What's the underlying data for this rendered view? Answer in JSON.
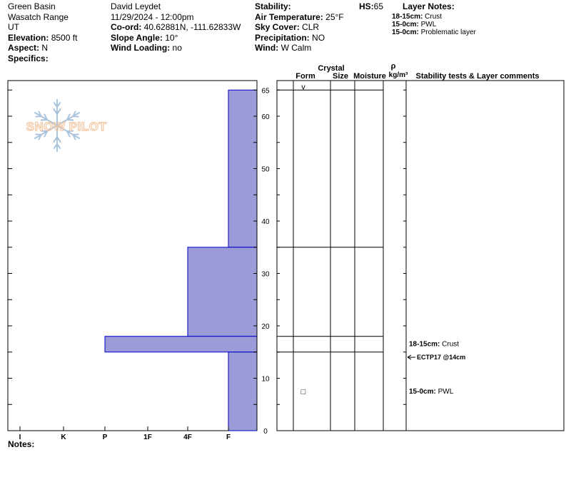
{
  "header": {
    "col1": {
      "location": "Green Basin",
      "range": "Wasatch Range",
      "state": "UT",
      "elevation_label": "Elevation:",
      "elevation_value": "8500 ft",
      "aspect_label": "Aspect:",
      "aspect_value": "N",
      "specifics_label": "Specifics:"
    },
    "col2": {
      "observer": "David Leydet",
      "datetime": "11/29/2024 - 12:00pm",
      "coord_label": "Co-ord:",
      "coord_value": "40.62881N, -111.62833W",
      "slope_label": "Slope Angle:",
      "slope_value": "10°",
      "wind_loading_label": "Wind Loading:",
      "wind_loading_value": "no"
    },
    "col3": {
      "stability_label": "Stability:",
      "air_temp_label": "Air Temperature:",
      "air_temp_value": "25°F",
      "sky_label": "Sky Cover:",
      "sky_value": "CLR",
      "precip_label": "Precipitation:",
      "precip_value": "NO",
      "wind_label": "Wind:",
      "wind_value": "W Calm"
    },
    "hs_label": "HS:",
    "hs_value": "65",
    "layer_notes_title": "Layer Notes:",
    "layer_notes": [
      {
        "range": "18-15cm:",
        "text": "Crust"
      },
      {
        "range": "15-0cm:",
        "text": "PWL"
      },
      {
        "range": "15-0cm:",
        "text": "Problematic layer"
      }
    ]
  },
  "logo_text": "SNOW PILOT",
  "chart_data": {
    "type": "bar",
    "subtype": "snow-profile-hand-hardness",
    "y_axis": {
      "label": "",
      "unit": "cm",
      "min": 0,
      "max": 67,
      "ticks": [
        0,
        10,
        20,
        30,
        40,
        50,
        60,
        65
      ]
    },
    "x_axis": {
      "categories": [
        "I",
        "K",
        "P",
        "1F",
        "4F",
        "F"
      ],
      "direction": "hardness decreases to the right"
    },
    "series": [
      {
        "layers": [
          {
            "top": 65,
            "bottom": 35,
            "hardness": "F"
          },
          {
            "top": 35,
            "bottom": 18,
            "hardness": "4F"
          },
          {
            "top": 18,
            "bottom": 15,
            "hardness": "P"
          },
          {
            "top": 15,
            "bottom": 0,
            "hardness": "F"
          }
        ]
      }
    ],
    "layer_boundaries": [
      65,
      35,
      18,
      15
    ],
    "colors": {
      "fill": "#9b9bd7",
      "stroke": "#0000c8"
    }
  },
  "table": {
    "headers": {
      "crystal": "Crystal",
      "form": "Form",
      "size": "Size",
      "moisture": "Moisture",
      "rho": "ρ",
      "density_unit": "kg/m³",
      "comments": "Stability tests & Layer comments"
    },
    "form_symbols": [
      {
        "depth": 65,
        "symbol": "v"
      },
      {
        "depth": 7.5,
        "symbol": "□"
      }
    ],
    "comments": [
      {
        "depth": 16.5,
        "range": "18-15cm:",
        "text": "Crust"
      },
      {
        "depth": 7.5,
        "range": "15-0cm:",
        "text": "PWL"
      }
    ],
    "tests": [
      {
        "depth": 14,
        "text": "ECTP17 @14cm"
      }
    ]
  },
  "notes_label": "Notes:"
}
